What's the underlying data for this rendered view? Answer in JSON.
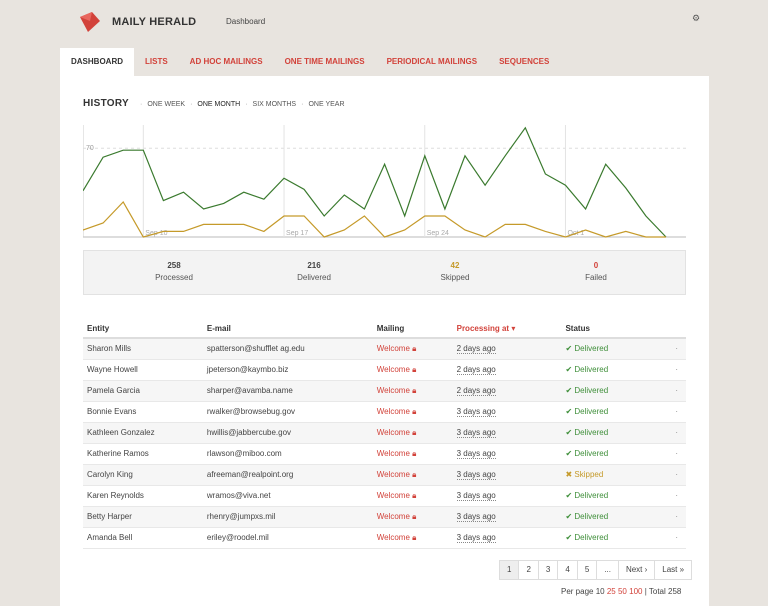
{
  "app": {
    "brand": "MAILY HERALD",
    "breadcrumb": "Dashboard",
    "brand_color": "#d2423a"
  },
  "tabs": [
    {
      "label": "DASHBOARD",
      "active": true
    },
    {
      "label": "LISTS"
    },
    {
      "label": "AD HOC MAILINGS"
    },
    {
      "label": "ONE TIME MAILINGS"
    },
    {
      "label": "PERIODICAL MAILINGS"
    },
    {
      "label": "SEQUENCES"
    }
  ],
  "history": {
    "title": "HISTORY",
    "ranges": [
      "ONE WEEK",
      "ONE MONTH",
      "SIX MONTHS",
      "ONE YEAR"
    ],
    "active_range": "ONE MONTH"
  },
  "chart_data": {
    "type": "line",
    "x_ticks": [
      "Sep 10",
      "Sep 17",
      "Sep 24",
      "Oct 1"
    ],
    "y_ticks": [
      "70"
    ],
    "series": [
      {
        "color": "#3a7a2e",
        "values": [
          33,
          57,
          62,
          62,
          26,
          32,
          20,
          24,
          32,
          27,
          42,
          34,
          15,
          30,
          20,
          52,
          15,
          58,
          20,
          58,
          37,
          58,
          78,
          45,
          37,
          20,
          52,
          35,
          15,
          0
        ]
      },
      {
        "color": "#c59a2a",
        "values": [
          5,
          10,
          25,
          0,
          4,
          4,
          9,
          9,
          9,
          4,
          15,
          15,
          0,
          5,
          15,
          0,
          5,
          15,
          15,
          5,
          0,
          9,
          9,
          4,
          0,
          5,
          0,
          4,
          0,
          0
        ]
      }
    ]
  },
  "stats": [
    {
      "value": "258",
      "label": "Processed"
    },
    {
      "value": "216",
      "label": "Delivered"
    },
    {
      "value": "42",
      "label": "Skipped"
    },
    {
      "value": "0",
      "label": "Failed"
    }
  ],
  "table": {
    "columns": [
      "Entity",
      "E-mail",
      "Mailing",
      "Processing at",
      "Status"
    ],
    "rows": [
      {
        "entity": "Sharon Mills",
        "email": "spatterson@shufflet ag.edu",
        "mailing": "Welcome",
        "when": "2 days ago",
        "status": "Delivered"
      },
      {
        "entity": "Wayne Howell",
        "email": "jpeterson@kaymbo.biz",
        "mailing": "Welcome",
        "when": "2 days ago",
        "status": "Delivered"
      },
      {
        "entity": "Pamela Garcia",
        "email": "sharper@avamba.name",
        "mailing": "Welcome",
        "when": "2 days ago",
        "status": "Delivered"
      },
      {
        "entity": "Bonnie Evans",
        "email": "rwalker@browsebug.gov",
        "mailing": "Welcome",
        "when": "3 days ago",
        "status": "Delivered"
      },
      {
        "entity": "Kathleen Gonzalez",
        "email": "hwillis@jabbercube.gov",
        "mailing": "Welcome",
        "when": "3 days ago",
        "status": "Delivered"
      },
      {
        "entity": "Katherine Ramos",
        "email": "rlawson@miboo.com",
        "mailing": "Welcome",
        "when": "3 days ago",
        "status": "Delivered"
      },
      {
        "entity": "Carolyn King",
        "email": "afreeman@realpoint.org",
        "mailing": "Welcome",
        "when": "3 days ago",
        "status": "Skipped"
      },
      {
        "entity": "Karen Reynolds",
        "email": "wramos@viva.net",
        "mailing": "Welcome",
        "when": "3 days ago",
        "status": "Delivered"
      },
      {
        "entity": "Betty Harper",
        "email": "rhenry@jumpxs.mil",
        "mailing": "Welcome",
        "when": "3 days ago",
        "status": "Delivered"
      },
      {
        "entity": "Amanda Bell",
        "email": "eriley@roodel.mil",
        "mailing": "Welcome",
        "when": "3 days ago",
        "status": "Delivered"
      }
    ]
  },
  "pagination": {
    "pages": [
      "1",
      "2",
      "3",
      "4",
      "5",
      "..."
    ],
    "next": "Next ›",
    "last": "Last »",
    "active": "1"
  },
  "per_page": {
    "label": "Per page",
    "options": [
      "10",
      "25",
      "50",
      "100"
    ],
    "total": "| Total 258"
  }
}
